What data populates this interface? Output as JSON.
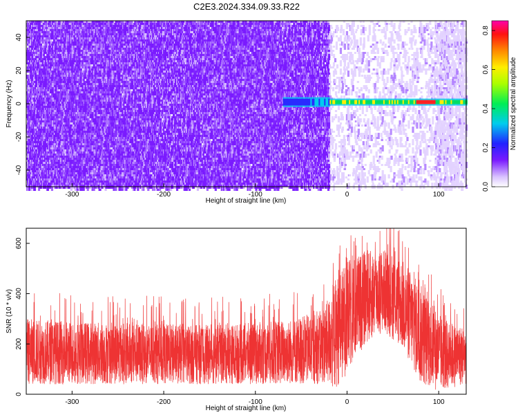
{
  "title": "C2E3.2024.334.09.33.R22",
  "chart_data": [
    {
      "type": "heatmap",
      "name": "spectrogram",
      "xlabel": "Height of straight line (km)",
      "ylabel": "Frequency (Hz)",
      "xlim": [
        -350,
        130
      ],
      "ylim": [
        -50,
        50
      ],
      "xticks": [
        -300,
        -200,
        -100,
        0,
        100
      ],
      "yticks": [
        -40,
        -20,
        0,
        20,
        40
      ],
      "colorbar": {
        "label": "Normalized spectral amplitude",
        "range": [
          0,
          0.85
        ],
        "ticks": [
          0.0,
          0.2,
          0.4,
          0.6,
          0.8
        ],
        "colormap": "rainbow (white-purple-blue-cyan-green-yellow-red-magenta)"
      },
      "features": {
        "noise_region_x": [
          -350,
          -20
        ],
        "quiet_region_x": [
          -20,
          95
        ],
        "signal_start_x": -70,
        "signal_frequency_hz": 1,
        "peak_amplitude_x": [
          75,
          95
        ]
      }
    },
    {
      "type": "line",
      "name": "snr",
      "xlabel": "Height of straight line (km)",
      "ylabel": "SNR (10 * v/v)",
      "xlim": [
        -350,
        130
      ],
      "ylim": [
        0,
        660
      ],
      "xticks": [
        -300,
        -200,
        -100,
        0,
        100
      ],
      "yticks": [
        0,
        200,
        400,
        600
      ],
      "color": "#ee3333",
      "envelope": {
        "x": [
          -350,
          -300,
          -250,
          -200,
          -150,
          -100,
          -60,
          -30,
          -20,
          -15,
          0,
          20,
          40,
          60,
          80,
          100,
          110,
          130
        ],
        "upper": [
          300,
          290,
          285,
          280,
          275,
          285,
          300,
          330,
          380,
          450,
          530,
          570,
          580,
          540,
          440,
          320,
          290,
          270
        ],
        "lower": [
          40,
          40,
          40,
          40,
          40,
          40,
          40,
          40,
          40,
          10,
          80,
          200,
          250,
          180,
          40,
          10,
          20,
          40
        ]
      }
    }
  ]
}
